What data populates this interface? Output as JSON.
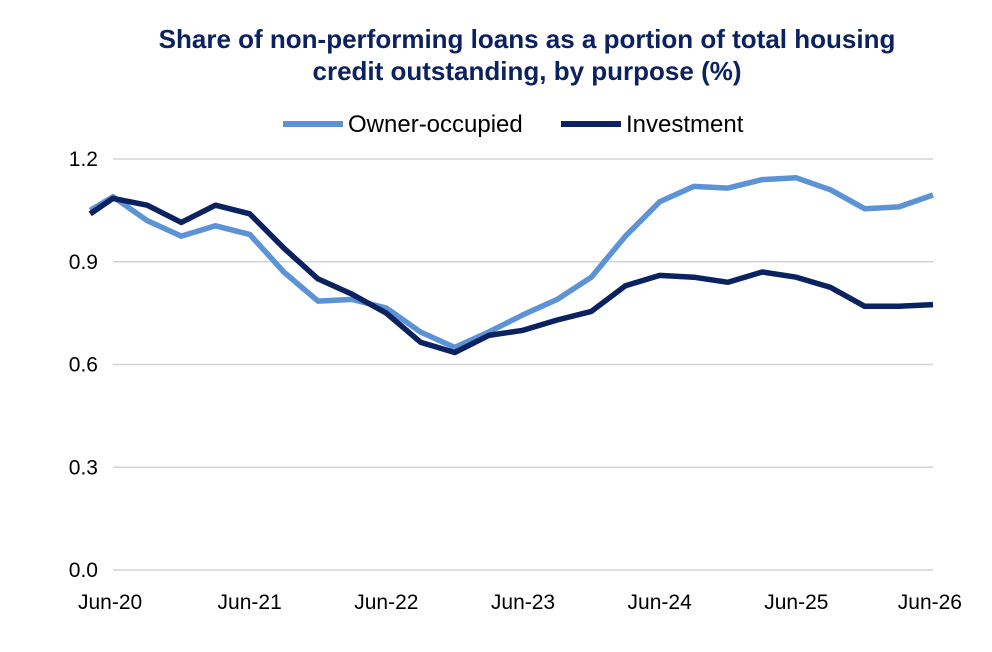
{
  "chart_data": {
    "type": "line",
    "title_lines": [
      "Share of non-performing loans as a portion of total housing",
      "credit outstanding, by purpose (%)"
    ],
    "xlabel": "",
    "ylabel": "",
    "ylim": [
      0,
      1.2
    ],
    "yticks": [
      "0.0",
      "0.3",
      "0.6",
      "0.9",
      "1.2"
    ],
    "xlim": [
      "Jun-20",
      "Jun-26"
    ],
    "xticks": [
      "Jun-20",
      "Jun-21",
      "Jun-22",
      "Jun-23",
      "Jun-24",
      "Jun-25",
      "Jun-26"
    ],
    "grid": true,
    "legend_position": "top",
    "series": [
      {
        "name": "Owner-occupied",
        "color": "#5b93d6",
        "points": [
          [
            "Apr-20",
            1.05
          ],
          [
            "Jun-20",
            1.09
          ],
          [
            "Sep-20",
            1.02
          ],
          [
            "Dec-20",
            0.975
          ],
          [
            "Mar-21",
            1.005
          ],
          [
            "Jun-21",
            0.98
          ],
          [
            "Sep-21",
            0.87
          ],
          [
            "Dec-21",
            0.785
          ],
          [
            "Mar-22",
            0.79
          ],
          [
            "Jun-22",
            0.765
          ],
          [
            "Sep-22",
            0.695
          ],
          [
            "Dec-22",
            0.65
          ],
          [
            "Mar-23",
            0.695
          ],
          [
            "Jun-23",
            0.745
          ],
          [
            "Sep-23",
            0.79
          ],
          [
            "Dec-23",
            0.855
          ],
          [
            "Mar-24",
            0.975
          ],
          [
            "Jun-24",
            1.075
          ],
          [
            "Sep-24",
            1.12
          ],
          [
            "Dec-24",
            1.115
          ],
          [
            "Mar-25",
            1.14
          ],
          [
            "Jun-25",
            1.145
          ],
          [
            "Sep-25",
            1.11
          ],
          [
            "Dec-25",
            1.055
          ],
          [
            "Mar-26",
            1.06
          ],
          [
            "Jun-26",
            1.095
          ]
        ]
      },
      {
        "name": "Investment",
        "color": "#0b2260",
        "points": [
          [
            "Apr-20",
            1.04
          ],
          [
            "Jun-20",
            1.085
          ],
          [
            "Sep-20",
            1.065
          ],
          [
            "Dec-20",
            1.015
          ],
          [
            "Mar-21",
            1.065
          ],
          [
            "Jun-21",
            1.04
          ],
          [
            "Sep-21",
            0.94
          ],
          [
            "Dec-21",
            0.85
          ],
          [
            "Mar-22",
            0.805
          ],
          [
            "Jun-22",
            0.75
          ],
          [
            "Sep-22",
            0.665
          ],
          [
            "Dec-22",
            0.635
          ],
          [
            "Mar-23",
            0.685
          ],
          [
            "Jun-23",
            0.7
          ],
          [
            "Sep-23",
            0.73
          ],
          [
            "Dec-23",
            0.755
          ],
          [
            "Mar-24",
            0.83
          ],
          [
            "Jun-24",
            0.86
          ],
          [
            "Sep-24",
            0.855
          ],
          [
            "Dec-24",
            0.84
          ],
          [
            "Mar-25",
            0.87
          ],
          [
            "Jun-25",
            0.855
          ],
          [
            "Sep-25",
            0.825
          ],
          [
            "Dec-25",
            0.77
          ],
          [
            "Mar-26",
            0.77
          ],
          [
            "Jun-26",
            0.775
          ]
        ]
      }
    ]
  }
}
